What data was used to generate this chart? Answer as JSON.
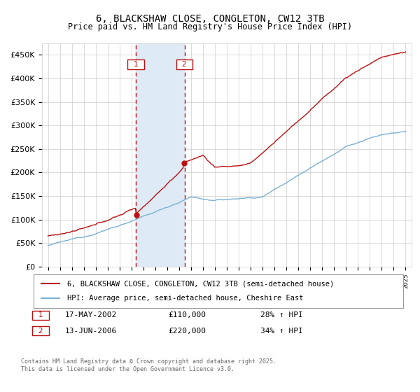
{
  "title": "6, BLACKSHAW CLOSE, CONGLETON, CW12 3TB",
  "subtitle": "Price paid vs. HM Land Registry's House Price Index (HPI)",
  "background_color": "#ffffff",
  "grid_color": "#cccccc",
  "legend_line1": "6, BLACKSHAW CLOSE, CONGLETON, CW12 3TB (semi-detached house)",
  "legend_line2": "HPI: Average price, semi-detached house, Cheshire East",
  "event1_date": "17-MAY-2002",
  "event1_price": "£110,000",
  "event1_hpi": "28% ↑ HPI",
  "event1_year": 2002.38,
  "event2_date": "13-JUN-2006",
  "event2_price": "£220,000",
  "event2_hpi": "34% ↑ HPI",
  "event2_year": 2006.45,
  "footer": "Contains HM Land Registry data © Crown copyright and database right 2025.\nThis data is licensed under the Open Government Licence v3.0.",
  "ylim": [
    0,
    475000
  ],
  "xlim": [
    1994.5,
    2025.5
  ],
  "red_color": "#bb1111",
  "blue_color": "#7ab0d4",
  "shade_color": "#deeaf5",
  "event1_price_val": 110000,
  "event2_price_val": 220000
}
